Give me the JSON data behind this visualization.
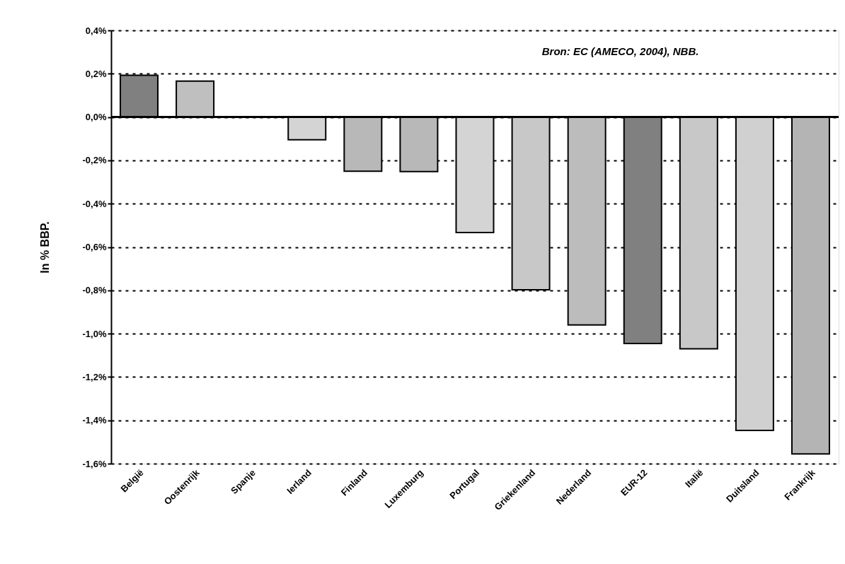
{
  "chart_data": {
    "type": "bar",
    "ylabel": "In % BBP.",
    "categories": [
      "België",
      "Oostenrijk",
      "Spanje",
      "Ierland",
      "Finland",
      "Luxemburg",
      "Portugal",
      "Griekenland",
      "Nederland",
      "EUR-12",
      "Italië",
      "Duitsland",
      "Frankrijk"
    ],
    "values": [
      0.193,
      0.166,
      null,
      -0.105,
      -0.25,
      -0.252,
      -0.533,
      -0.797,
      -0.96,
      -1.045,
      -1.07,
      -1.447,
      -1.555
    ],
    "colors": [
      "#808080",
      "#bfbfbf",
      null,
      "#d4d4d4",
      "#b8b8b8",
      "#b8b8b8",
      "#d4d4d4",
      "#c8c8c8",
      "#bcbcbc",
      "#808080",
      "#c8c8c8",
      "#d0d0d0",
      "#b4b4b4"
    ],
    "ylim": [
      -1.6,
      0.4
    ],
    "yticks": [
      {
        "value": 0.4,
        "label": "0,4%"
      },
      {
        "value": 0.2,
        "label": "0,2%"
      },
      {
        "value": 0,
        "label": "0,0%"
      },
      {
        "value": -0.2,
        "label": "-0,2%"
      },
      {
        "value": -0.4,
        "label": "-0,4%"
      },
      {
        "value": -0.6,
        "label": "-0,6%"
      },
      {
        "value": -0.8,
        "label": "-0,8%"
      },
      {
        "value": -1.0,
        "label": "-1,0%"
      },
      {
        "value": -1.2,
        "label": "-1,2%"
      },
      {
        "value": -1.4,
        "label": "-1,4%"
      },
      {
        "value": -1.6,
        "label": "-1,6%"
      }
    ],
    "grid": "y",
    "annotations": [
      "Bron: EC (AMECO, 2004), NBB."
    ]
  }
}
